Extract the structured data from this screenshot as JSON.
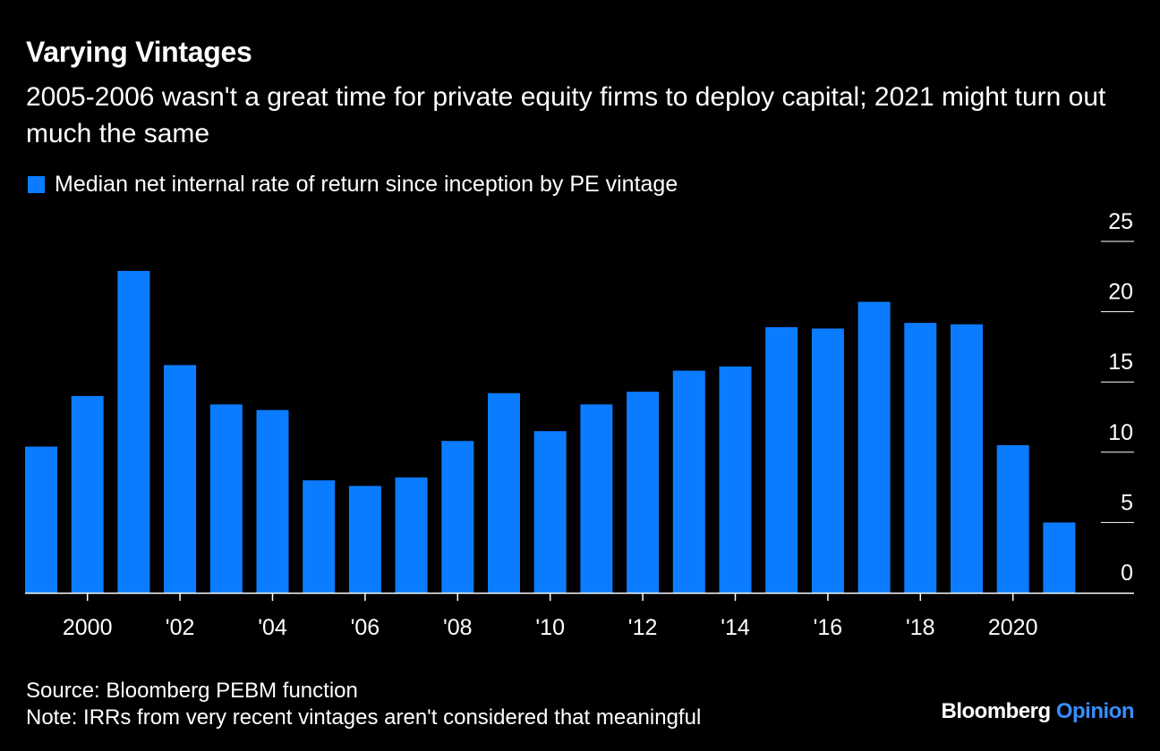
{
  "header": {
    "title": "Varying Vintages",
    "subtitle": "2005-2006 wasn't a great time for private equity firms to deploy capital; 2021 might turn out much the same"
  },
  "colors": {
    "bar": "#0b7cff",
    "background": "#000000",
    "text": "#ffffff",
    "accent": "#3a8dff"
  },
  "chart_data": {
    "type": "bar",
    "title": "Varying Vintages",
    "subtitle": "2005-2006 wasn't a great time for private equity firms to deploy capital; 2021 might turn out much the same",
    "categories": [
      1999,
      2000,
      2001,
      2002,
      2003,
      2004,
      2005,
      2006,
      2007,
      2008,
      2009,
      2010,
      2011,
      2012,
      2013,
      2014,
      2015,
      2016,
      2017,
      2018,
      2019,
      2020,
      2021
    ],
    "series": [
      {
        "name": "Median net internal rate of return since inception by PE vintage",
        "values": [
          10.4,
          14.0,
          22.9,
          16.2,
          13.4,
          13.0,
          8.0,
          7.6,
          8.2,
          10.8,
          14.2,
          11.5,
          13.4,
          14.3,
          15.8,
          16.1,
          18.9,
          18.8,
          20.7,
          19.2,
          19.1,
          10.5,
          5.0
        ]
      }
    ],
    "x_tick_labels": [
      {
        "x": 2000,
        "label": "2000"
      },
      {
        "x": 2002,
        "label": "'02"
      },
      {
        "x": 2004,
        "label": "'04"
      },
      {
        "x": 2006,
        "label": "'06"
      },
      {
        "x": 2008,
        "label": "'08"
      },
      {
        "x": 2010,
        "label": "'10"
      },
      {
        "x": 2012,
        "label": "'12"
      },
      {
        "x": 2014,
        "label": "'14"
      },
      {
        "x": 2016,
        "label": "'16"
      },
      {
        "x": 2018,
        "label": "'18"
      },
      {
        "x": 2020,
        "label": "2020"
      }
    ],
    "y_ticks": [
      0,
      5,
      10,
      15,
      20,
      25
    ],
    "ylim": [
      0,
      25
    ],
    "y_axis_position": "right",
    "legend_position": "top-left",
    "grid": false,
    "xlabel": "",
    "ylabel": ""
  },
  "footer": {
    "source": "Source: Bloomberg PEBM function",
    "note": "Note: IRRs from very recent vintages aren't considered that meaningful"
  },
  "brand": {
    "name": "Bloomberg",
    "product": "Opinion"
  }
}
